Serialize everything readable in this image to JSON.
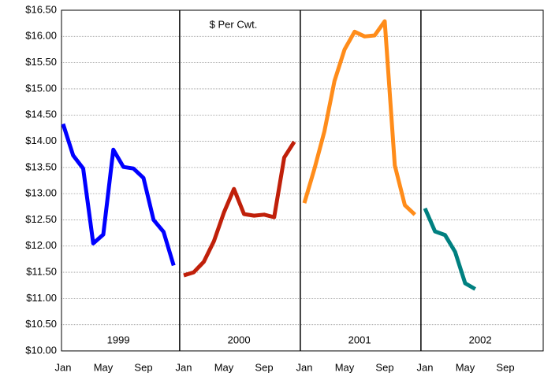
{
  "chart_data": {
    "type": "line",
    "subtitle": "$ Per Cwt.",
    "categories": [
      "Jan",
      null,
      null,
      null,
      "May",
      null,
      null,
      null,
      "Sep",
      null,
      null,
      null,
      "Jan",
      null,
      null,
      null,
      "May",
      null,
      null,
      null,
      "Sep",
      null,
      null,
      null,
      "Jan",
      null,
      null,
      null,
      "May",
      null,
      null,
      null,
      "Sep",
      null,
      null,
      null,
      "Jan",
      null,
      null,
      null,
      "May",
      null,
      null,
      null,
      "Sep",
      null,
      null,
      null
    ],
    "series": [
      {
        "name": "1999",
        "color": "#0000ff",
        "values": [
          14.33,
          13.73,
          13.48,
          12.05,
          12.22,
          13.84,
          13.51,
          13.48,
          13.3,
          12.5,
          12.27,
          11.63,
          null,
          null,
          null,
          null,
          null,
          null,
          null,
          null,
          null,
          null,
          null,
          null,
          null,
          null,
          null,
          null,
          null,
          null,
          null,
          null,
          null,
          null,
          null,
          null,
          null,
          null,
          null,
          null,
          null,
          null,
          null,
          null,
          null,
          null,
          null,
          null
        ]
      },
      {
        "name": "2000",
        "color": "#c0200a",
        "values": [
          null,
          null,
          null,
          null,
          null,
          null,
          null,
          null,
          null,
          null,
          null,
          null,
          11.44,
          11.5,
          11.7,
          12.09,
          12.64,
          13.09,
          12.61,
          12.58,
          12.6,
          12.55,
          13.69,
          13.99,
          null,
          null,
          null,
          null,
          null,
          null,
          null,
          null,
          null,
          null,
          null,
          null,
          null,
          null,
          null,
          null,
          null,
          null,
          null,
          null,
          null,
          null,
          null,
          null
        ]
      },
      {
        "name": "2001",
        "color": "#ff8c1a",
        "values": [
          null,
          null,
          null,
          null,
          null,
          null,
          null,
          null,
          null,
          null,
          null,
          null,
          null,
          null,
          null,
          null,
          null,
          null,
          null,
          null,
          null,
          null,
          null,
          null,
          12.82,
          13.47,
          14.19,
          15.15,
          15.75,
          16.09,
          16.0,
          16.02,
          16.29,
          13.54,
          12.78,
          12.6,
          null,
          null,
          null,
          null,
          null,
          null,
          null,
          null,
          null,
          null,
          null,
          null
        ]
      },
      {
        "name": "2002",
        "color": "#008080",
        "values": [
          null,
          null,
          null,
          null,
          null,
          null,
          null,
          null,
          null,
          null,
          null,
          null,
          null,
          null,
          null,
          null,
          null,
          null,
          null,
          null,
          null,
          null,
          null,
          null,
          null,
          null,
          null,
          null,
          null,
          null,
          null,
          null,
          null,
          null,
          null,
          null,
          12.72,
          12.28,
          12.21,
          11.89,
          11.29,
          11.18,
          null,
          null,
          null,
          null,
          null,
          null
        ]
      }
    ],
    "ylim": [
      10,
      16.5
    ],
    "yticks": [
      {
        "value": 10,
        "label": "$10.00"
      },
      {
        "value": 10.5,
        "label": "$10.50"
      },
      {
        "value": 11,
        "label": "$11.00"
      },
      {
        "value": 11.5,
        "label": "$11.50"
      },
      {
        "value": 12,
        "label": "$12.00"
      },
      {
        "value": 12.5,
        "label": "$12.50"
      },
      {
        "value": 13,
        "label": "$13.00"
      },
      {
        "value": 13.5,
        "label": "$13.50"
      },
      {
        "value": 14,
        "label": "$14.00"
      },
      {
        "value": 14.5,
        "label": "$14.50"
      },
      {
        "value": 15,
        "label": "$15.00"
      },
      {
        "value": 15.5,
        "label": "$15.50"
      },
      {
        "value": 16,
        "label": "$16.00"
      },
      {
        "value": 16.5,
        "label": "$16.50"
      }
    ],
    "grid": true
  }
}
